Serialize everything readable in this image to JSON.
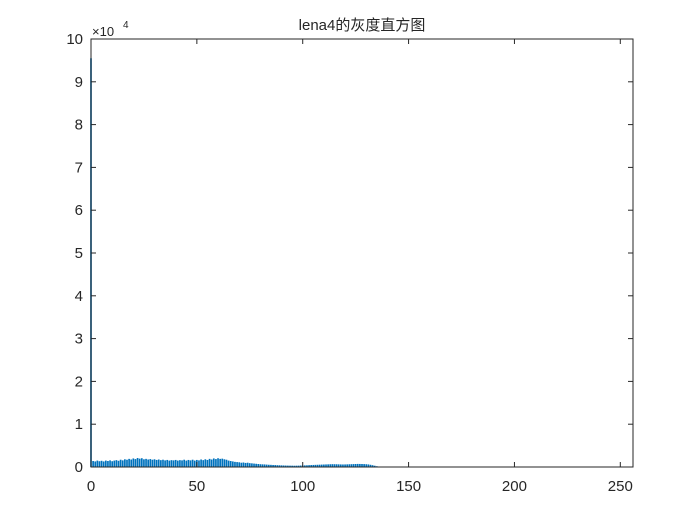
{
  "chart_data": {
    "type": "bar",
    "title": "lena4的灰度直方图",
    "y_exponent_label": "×10",
    "y_exponent_power": "4",
    "xlabel": "",
    "ylabel": "",
    "xlim": [
      0,
      256
    ],
    "ylim": [
      0,
      100000
    ],
    "x_ticks": [
      0,
      50,
      100,
      150,
      200,
      250
    ],
    "y_ticks": [
      0,
      1,
      2,
      3,
      4,
      5,
      6,
      7,
      8,
      9,
      10
    ],
    "y_tick_scale": 10000,
    "bar_color": "#0072BD",
    "grid": false,
    "x": [
      0,
      1,
      2,
      3,
      4,
      5,
      6,
      7,
      8,
      9,
      10,
      11,
      12,
      13,
      14,
      15,
      16,
      17,
      18,
      19,
      20,
      21,
      22,
      23,
      24,
      25,
      26,
      27,
      28,
      29,
      30,
      31,
      32,
      33,
      34,
      35,
      36,
      37,
      38,
      39,
      40,
      41,
      42,
      43,
      44,
      45,
      46,
      47,
      48,
      49,
      50,
      51,
      52,
      53,
      54,
      55,
      56,
      57,
      58,
      59,
      60,
      61,
      62,
      63,
      64,
      65,
      66,
      67,
      68,
      69,
      70,
      71,
      72,
      73,
      74,
      75,
      76,
      77,
      78,
      79,
      80,
      81,
      82,
      83,
      84,
      85,
      86,
      87,
      88,
      89,
      90,
      91,
      92,
      93,
      94,
      95,
      96,
      97,
      98,
      99,
      100,
      101,
      102,
      103,
      104,
      105,
      106,
      107,
      108,
      109,
      110,
      111,
      112,
      113,
      114,
      115,
      116,
      117,
      118,
      119,
      120,
      121,
      122,
      123,
      124,
      125,
      126,
      127,
      128,
      129,
      130,
      131,
      132,
      133,
      134,
      135,
      136,
      137,
      138
    ],
    "values": [
      95500,
      1400,
      1300,
      1500,
      1350,
      1450,
      1300,
      1500,
      1400,
      1550,
      1350,
      1500,
      1600,
      1450,
      1700,
      1550,
      1800,
      1700,
      1900,
      1750,
      2000,
      1850,
      2100,
      1950,
      2050,
      1800,
      1900,
      1750,
      1850,
      1700,
      1800,
      1650,
      1750,
      1600,
      1700,
      1550,
      1650,
      1500,
      1600,
      1550,
      1650,
      1500,
      1600,
      1550,
      1700,
      1500,
      1650,
      1550,
      1700,
      1500,
      1650,
      1550,
      1750,
      1600,
      1800,
      1650,
      1900,
      1750,
      2000,
      1850,
      2050,
      1900,
      1950,
      1800,
      1700,
      1500,
      1400,
      1300,
      1200,
      1150,
      1100,
      1000,
      1050,
      950,
      1000,
      900,
      850,
      800,
      750,
      700,
      650,
      620,
      600,
      560,
      520,
      500,
      470,
      450,
      420,
      400,
      380,
      360,
      340,
      330,
      320,
      310,
      300,
      310,
      320,
      340,
      360,
      380,
      400,
      430,
      460,
      480,
      500,
      520,
      540,
      560,
      580,
      600,
      620,
      640,
      660,
      650,
      640,
      620,
      600,
      590,
      600,
      620,
      640,
      660,
      680,
      700,
      720,
      710,
      700,
      680,
      650,
      600,
      520,
      420,
      300,
      180,
      80,
      20,
      0
    ]
  }
}
